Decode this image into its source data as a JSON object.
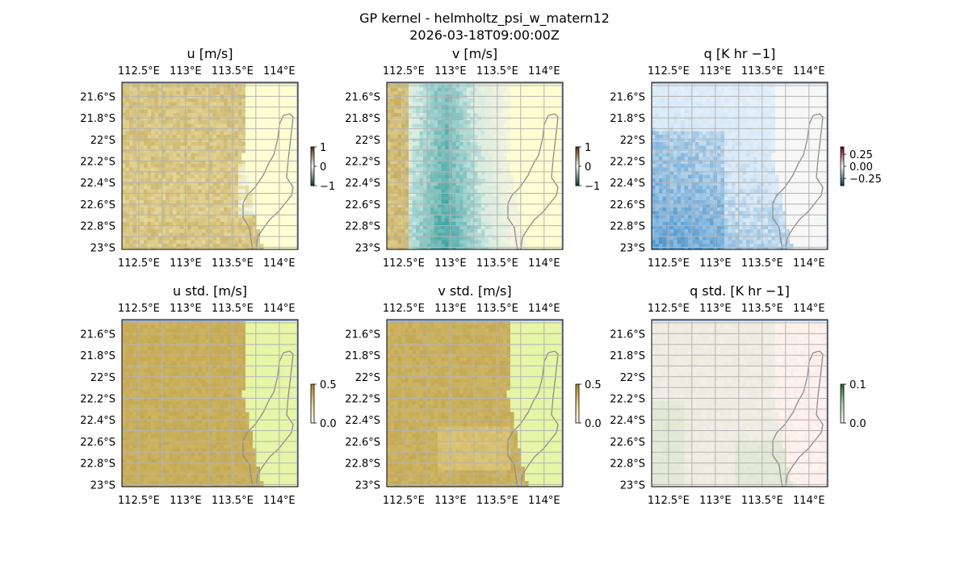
{
  "figure": {
    "title_line1": "GP kernel - helmholtz_psi_w_matern12",
    "title_line2": "2026-03-18T09:00:00Z"
  },
  "colors": {
    "ocean_edge": "#9db3d8",
    "land": "#fefed2",
    "land_std": "#e6f5a6",
    "coast": "#8c8c8c",
    "grid": "#b3b3b3"
  },
  "chart_data": [
    {
      "type": "heatmap",
      "id": "u",
      "title": "u [m/s]",
      "x_ticks": [
        "112.5°E",
        "113°E",
        "113.5°E",
        "114°E"
      ],
      "y_ticks": [
        "21.6°S",
        "21.8°S",
        "22°S",
        "22.2°S",
        "22.4°S",
        "22.6°S",
        "22.8°S",
        "23°S"
      ],
      "colorbar": {
        "ticks": [
          "1",
          "0",
          "−1"
        ],
        "range": [
          -1,
          1
        ],
        "colormap": "BrBG-like"
      }
    },
    {
      "type": "heatmap",
      "id": "v",
      "title": "v [m/s]",
      "x_ticks": [
        "112.5°E",
        "113°E",
        "113.5°E",
        "114°E"
      ],
      "y_ticks": [
        "21.6°S",
        "21.8°S",
        "22°S",
        "22.2°S",
        "22.4°S",
        "22.6°S",
        "22.8°S",
        "23°S"
      ],
      "colorbar": {
        "ticks": [
          "1",
          "0",
          "−1"
        ],
        "range": [
          -1,
          1
        ],
        "colormap": "BrBG-like"
      }
    },
    {
      "type": "heatmap",
      "id": "q",
      "title": "q [K hr −1]",
      "x_ticks": [
        "112.5°E",
        "113°E",
        "113.5°E",
        "114°E"
      ],
      "y_ticks": [
        "21.6°S",
        "21.8°S",
        "22°S",
        "22.2°S",
        "22.4°S",
        "22.6°S",
        "22.8°S",
        "23°S"
      ],
      "colorbar": {
        "ticks": [
          "0.25",
          "0.00",
          "−0.25"
        ],
        "range": [
          -0.25,
          0.25
        ],
        "colormap": "RdBu-like"
      }
    },
    {
      "type": "heatmap",
      "id": "ustd",
      "title": "u std. [m/s]",
      "x_ticks": [
        "112.5°E",
        "113°E",
        "113.5°E",
        "114°E"
      ],
      "y_ticks": [
        "21.6°S",
        "21.8°S",
        "22°S",
        "22.2°S",
        "22.4°S",
        "22.6°S",
        "22.8°S",
        "23°S"
      ],
      "colorbar": {
        "ticks": [
          "0.5",
          "0.0"
        ],
        "range": [
          0,
          0.5
        ],
        "colormap": "brown-like"
      }
    },
    {
      "type": "heatmap",
      "id": "vstd",
      "title": "v std. [m/s]",
      "x_ticks": [
        "112.5°E",
        "113°E",
        "113.5°E",
        "114°E"
      ],
      "y_ticks": [
        "21.6°S",
        "21.8°S",
        "22°S",
        "22.2°S",
        "22.4°S",
        "22.6°S",
        "22.8°S",
        "23°S"
      ],
      "colorbar": {
        "ticks": [
          "0.5",
          "0.0"
        ],
        "range": [
          0,
          0.5
        ],
        "colormap": "brown-like"
      }
    },
    {
      "type": "heatmap",
      "id": "qstd",
      "title": "q std. [K hr −1]",
      "x_ticks": [
        "112.5°E",
        "113°E",
        "113.5°E",
        "114°E"
      ],
      "y_ticks": [
        "21.6°S",
        "21.8°S",
        "22°S",
        "22.2°S",
        "22.4°S",
        "22.6°S",
        "22.8°S",
        "23°S"
      ],
      "colorbar": {
        "ticks": [
          "0.1",
          "0.0"
        ],
        "range": [
          0,
          0.1
        ],
        "colormap": "green-like"
      }
    }
  ]
}
